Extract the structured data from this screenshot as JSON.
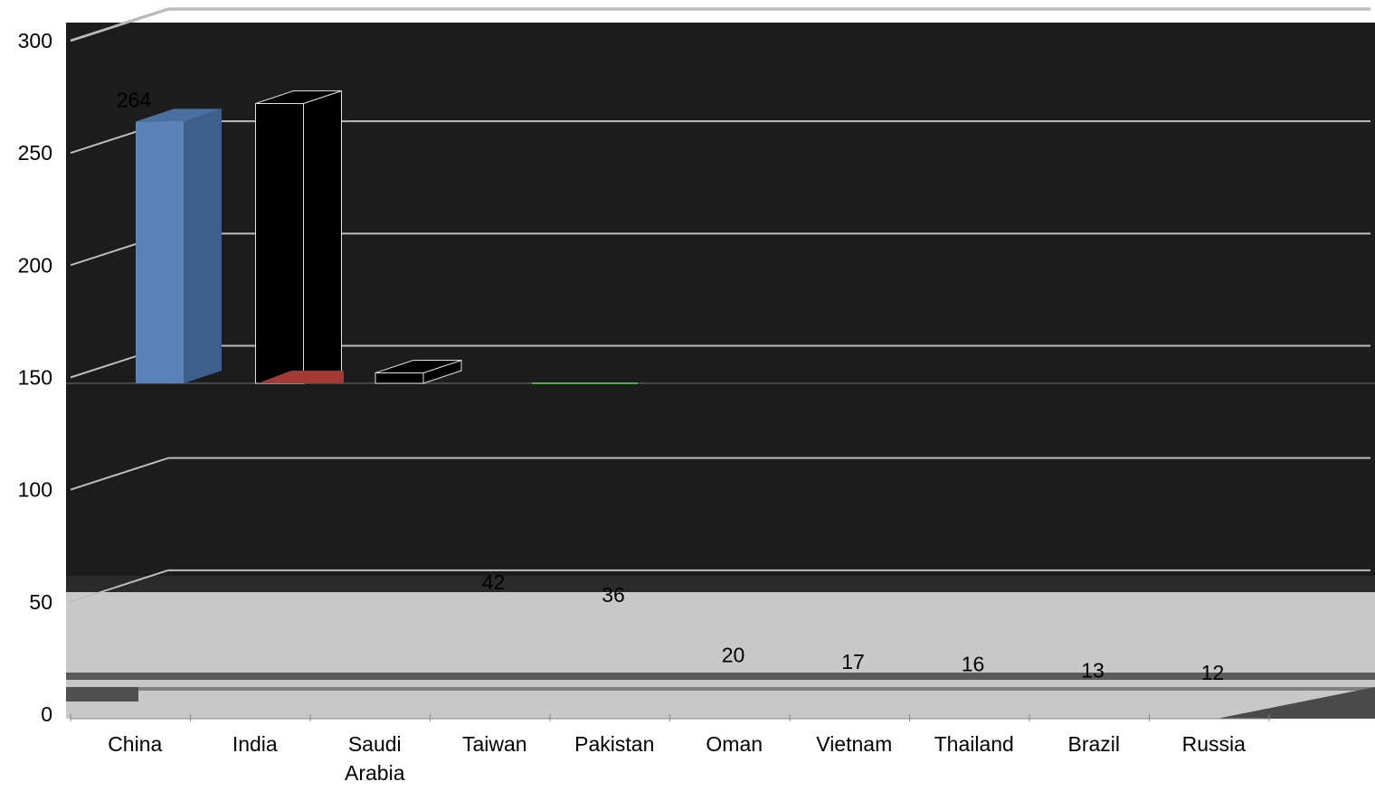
{
  "chart_data": {
    "type": "bar",
    "title": "",
    "xlabel": "",
    "ylabel": "",
    "categories": [
      "China",
      "India",
      "Saudi Arabia",
      "Taiwan",
      "Pakistan",
      "Oman",
      "Vietnam",
      "Thailand",
      "Brazil",
      "Russia"
    ],
    "values": [
      264,
      272,
      152,
      42,
      36,
      20,
      17,
      16,
      13,
      12
    ],
    "data_labels": [
      "264",
      "",
      "",
      "42",
      "36",
      "20",
      "17",
      "16",
      "13",
      "12"
    ],
    "y_ticks": [
      "0",
      "50",
      "100",
      "150",
      "200",
      "250",
      "300"
    ],
    "ylim": [
      0,
      300
    ],
    "grid": true,
    "legend": "none",
    "colors": {
      "bar_front": "#5b83b8",
      "bar_side": "#3e5f8c",
      "bar_top": "#4a6fa3",
      "plot_dark": "#1c1c1c",
      "plot_light": "#c8c8c8",
      "grid": "#bdbdbd",
      "accent_red": "#a33a36",
      "accent_green": "#4caf50"
    }
  }
}
